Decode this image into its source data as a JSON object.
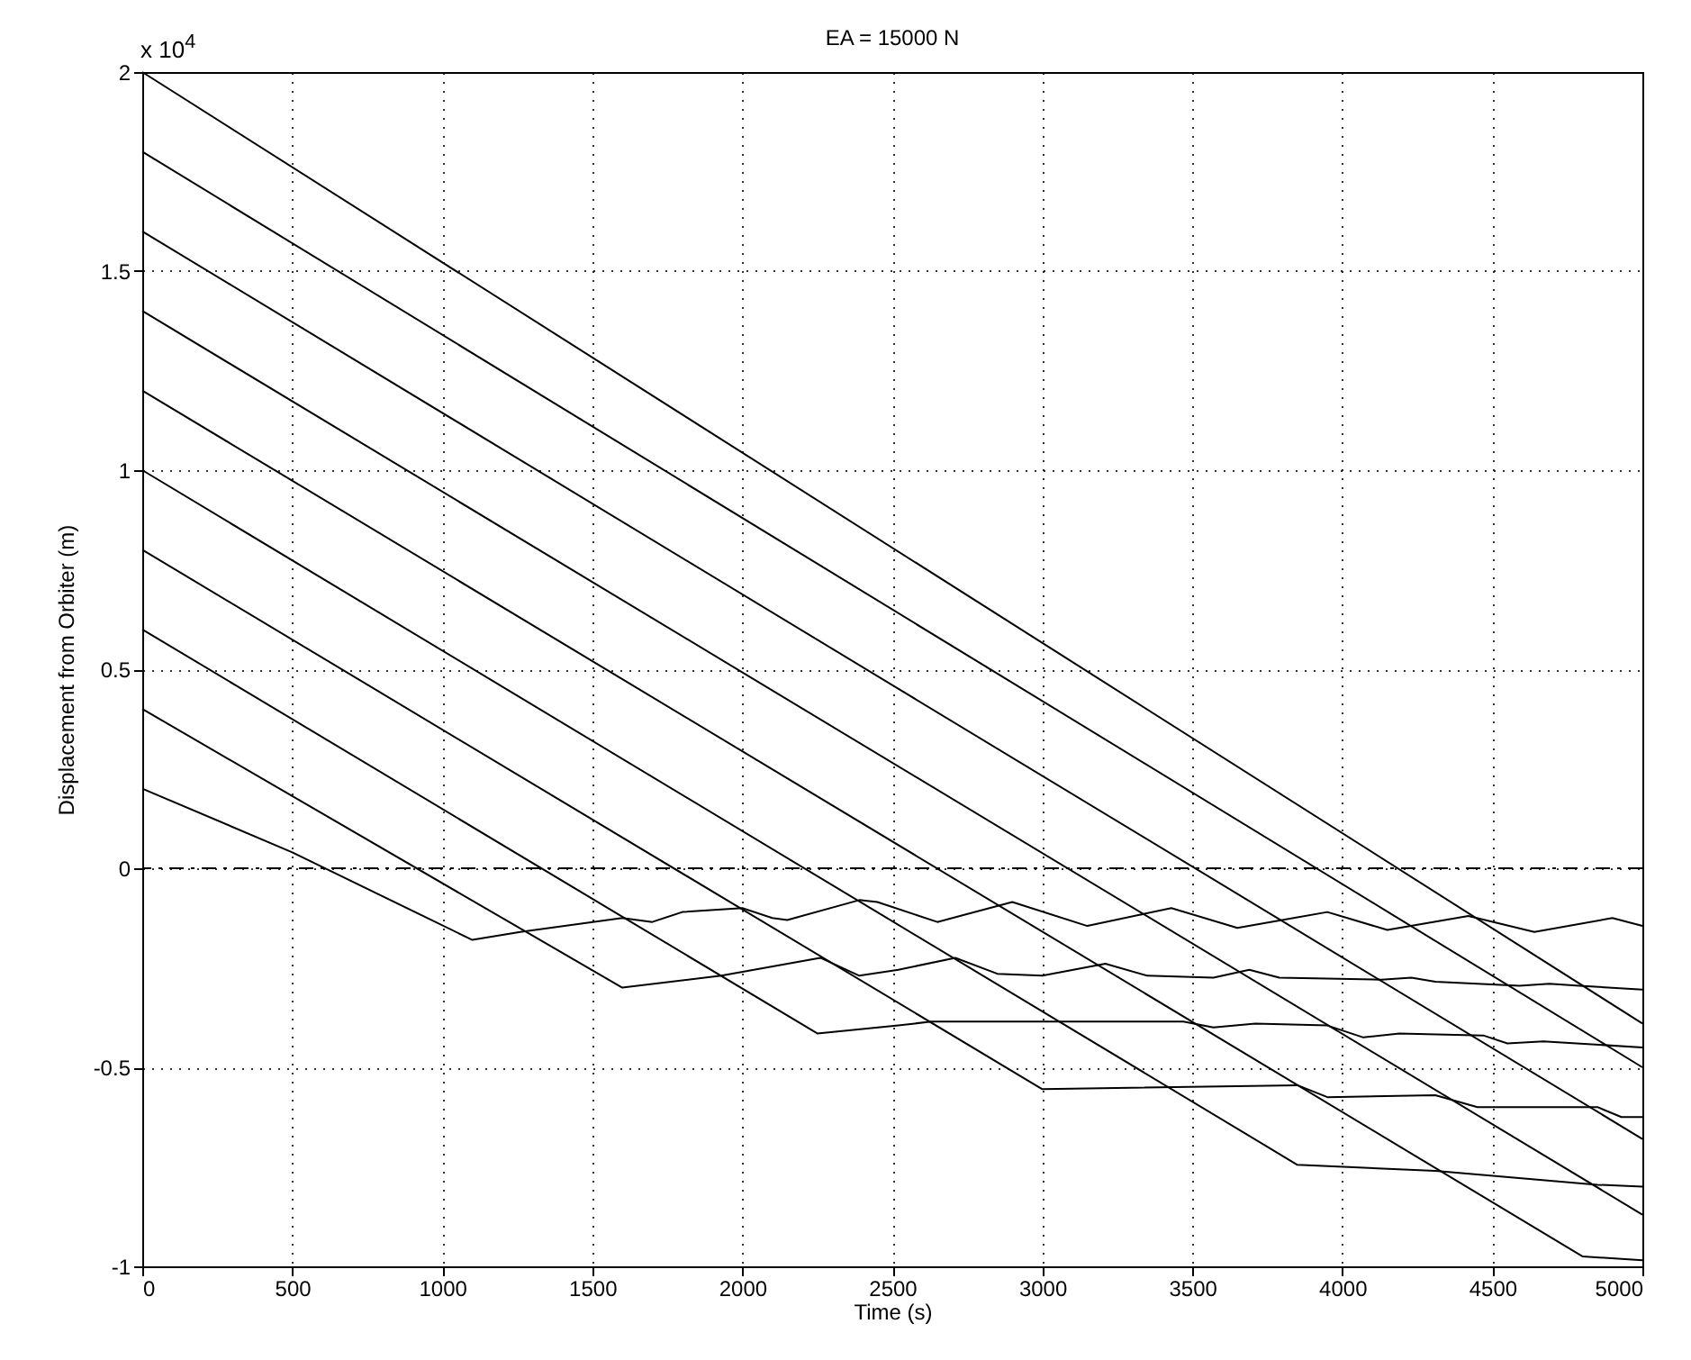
{
  "chart_data": {
    "type": "line",
    "title": "EA = 15000 N",
    "xlabel": "Time (s)",
    "ylabel": "Displacement from Orbiter (m)",
    "annotations": [
      "x 10$^{4}$"
    ],
    "xlim": [
      0,
      5000
    ],
    "xticks": [
      0,
      500,
      1000,
      1500,
      2000,
      2500,
      3000,
      3500,
      4000,
      4500,
      5000
    ],
    "ylim": [
      -1,
      2
    ],
    "yticks": [
      -1,
      -0.5,
      0,
      0.5,
      1,
      1.5,
      2
    ],
    "grid": true,
    "legend": false,
    "marker": "none",
    "line_style": "solid",
    "ref_lines": [
      {
        "axis": "y",
        "value": 0,
        "color": "#000000",
        "line_style": "dashed"
      }
    ],
    "series": [
      {
        "color": "#000000",
        "x": [
          0,
          500,
          1100,
          1260,
          1600,
          1700,
          1800,
          2000,
          2100,
          2150,
          2390,
          2450,
          2650,
          2900,
          3150,
          3430,
          3650,
          3950,
          4150,
          4420,
          4640,
          4900,
          5000
        ],
        "values": [
          0.2,
          0.04,
          -0.18,
          -0.16,
          -0.125,
          -0.135,
          -0.11,
          -0.1,
          -0.125,
          -0.13,
          -0.08,
          -0.085,
          -0.135,
          -0.085,
          -0.145,
          -0.1,
          -0.15,
          -0.11,
          -0.155,
          -0.12,
          -0.16,
          -0.125,
          -0.145
        ]
      },
      {
        "color": "#000000",
        "x": [
          0,
          1600,
          1930,
          2260,
          2390,
          2520,
          2710,
          2850,
          3000,
          3210,
          3350,
          3570,
          3690,
          3790,
          4130,
          4230,
          4310,
          4590,
          4690,
          4790,
          5000
        ],
        "values": [
          0.4,
          -0.3,
          -0.27,
          -0.225,
          -0.27,
          -0.255,
          -0.225,
          -0.265,
          -0.27,
          -0.24,
          -0.27,
          -0.275,
          -0.255,
          -0.275,
          -0.28,
          -0.275,
          -0.285,
          -0.295,
          -0.29,
          -0.295,
          -0.305
        ]
      },
      {
        "color": "#000000",
        "x": [
          0,
          2250,
          2520,
          2630,
          3470,
          3570,
          3710,
          3950,
          4070,
          4190,
          4470,
          4550,
          4670,
          5000
        ],
        "values": [
          0.6,
          -0.415,
          -0.395,
          -0.385,
          -0.385,
          -0.4,
          -0.39,
          -0.395,
          -0.425,
          -0.415,
          -0.42,
          -0.44,
          -0.435,
          -0.45
        ]
      },
      {
        "color": "#000000",
        "x": [
          0,
          3000,
          3850,
          3950,
          4310,
          4450,
          4850,
          4930,
          5000
        ],
        "values": [
          0.8,
          -0.555,
          -0.545,
          -0.575,
          -0.57,
          -0.6,
          -0.6,
          -0.625,
          -0.625
        ]
      },
      {
        "color": "#000000",
        "x": [
          0,
          3850,
          4310,
          4850,
          5000
        ],
        "values": [
          1,
          -0.745,
          -0.76,
          -0.795,
          -0.8
        ]
      },
      {
        "color": "#000000",
        "x": [
          0,
          4800,
          5000
        ],
        "values": [
          1.2,
          -0.975,
          -0.985
        ]
      },
      {
        "color": "#000000",
        "x": [
          0,
          5000
        ],
        "values": [
          1.4,
          -0.87
        ]
      },
      {
        "color": "#000000",
        "x": [
          0,
          5000
        ],
        "values": [
          1.6,
          -0.68
        ]
      },
      {
        "color": "#000000",
        "x": [
          0,
          5000
        ],
        "values": [
          1.8,
          -0.5
        ]
      },
      {
        "color": "#000000",
        "x": [
          0,
          5000
        ],
        "values": [
          2,
          -0.39
        ]
      }
    ]
  }
}
